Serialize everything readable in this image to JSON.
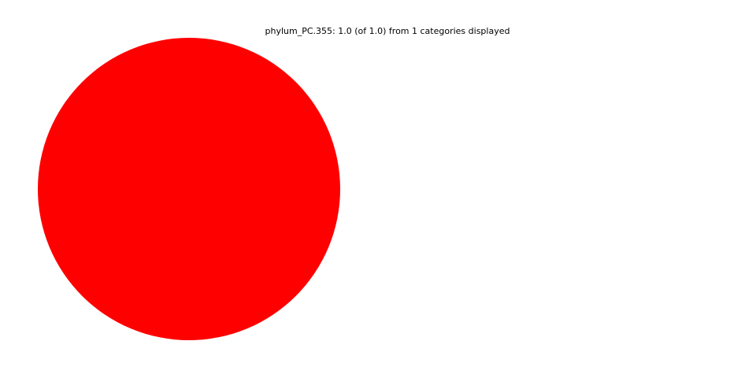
{
  "chart_data": {
    "type": "pie",
    "title": "phylum_PC.355: 1.0 (of 1.0) from 1 categories displayed",
    "slices": [
      {
        "value": 1.0,
        "color": "#ff0000"
      }
    ],
    "total": 1.0,
    "legend": "none"
  }
}
